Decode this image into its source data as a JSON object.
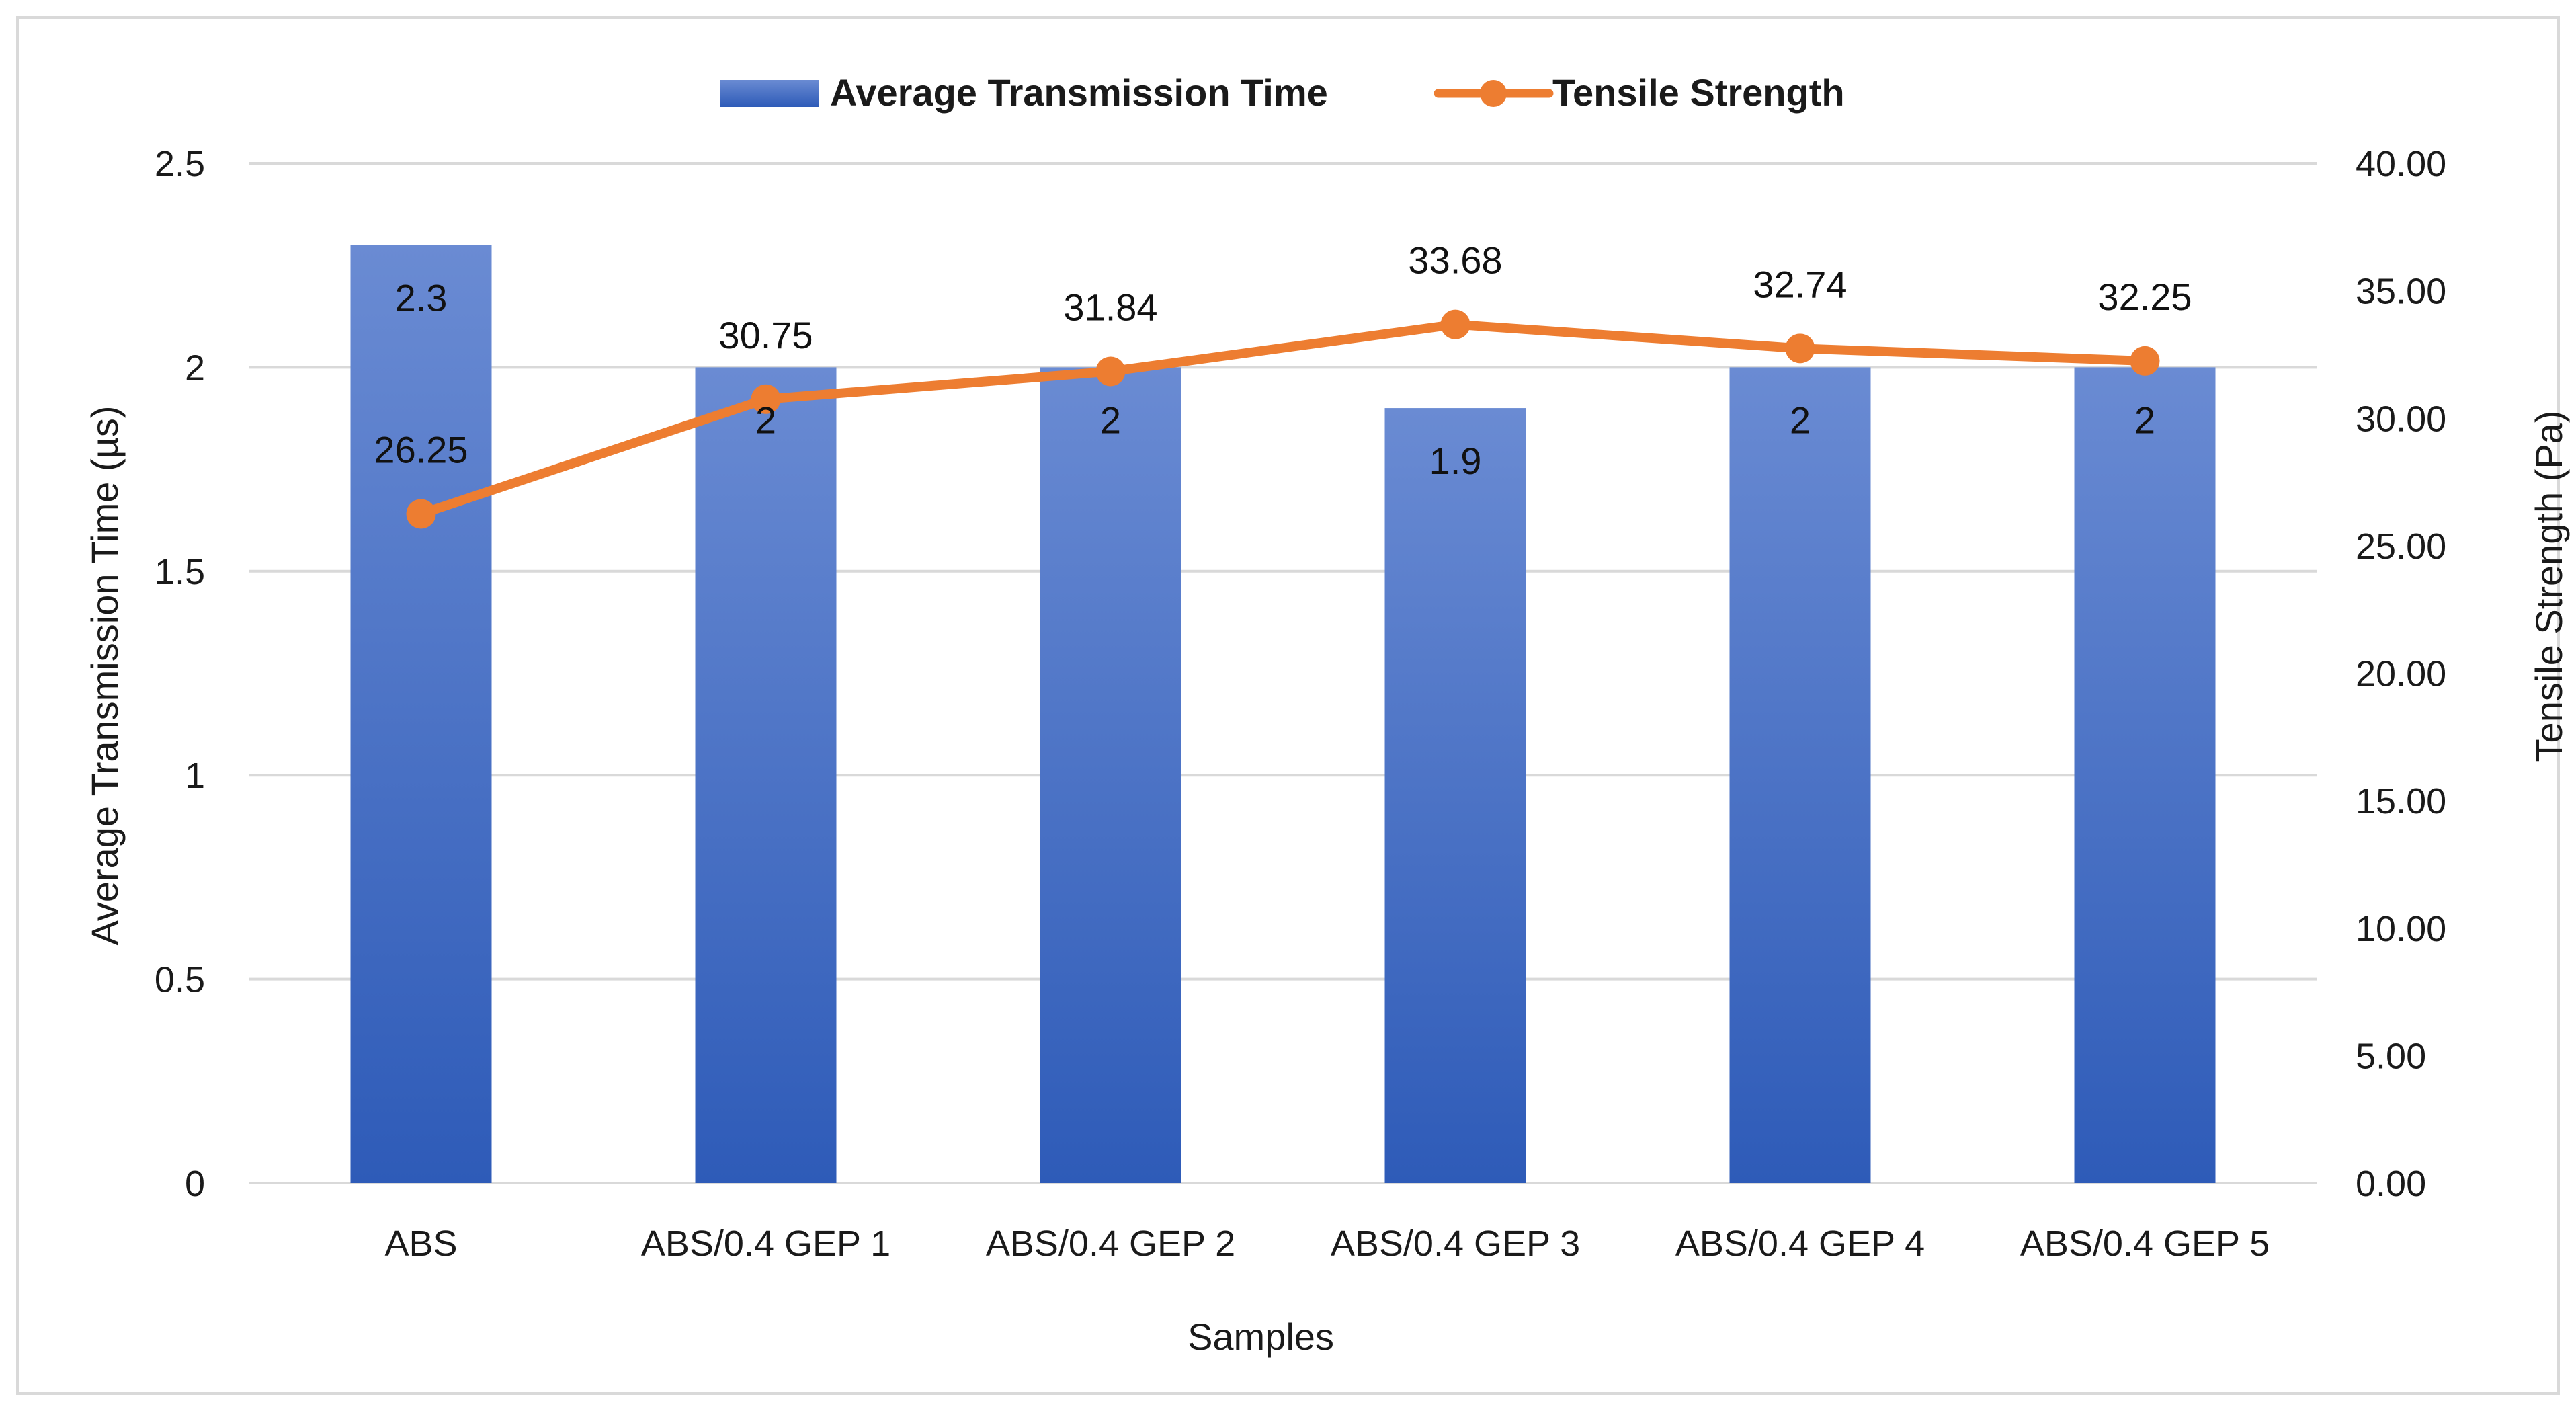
{
  "chart_data": {
    "type": "bar",
    "combo": "bar-line-dual-axis",
    "title": "",
    "categories": [
      "ABS",
      "ABS/0.4 GEP 1",
      "ABS/0.4 GEP 2",
      "ABS/0.4 GEP 3",
      "ABS/0.4 GEP 4",
      "ABS/0.4 GEP 5"
    ],
    "series": [
      {
        "name": "Average Transmission Time",
        "type": "bar",
        "axis": "left",
        "color": "#4472C4",
        "values": [
          2.3,
          2,
          2,
          1.9,
          2,
          2
        ],
        "labels": [
          "2.3",
          "2",
          "2",
          "1.9",
          "2",
          "2"
        ]
      },
      {
        "name": "Tensile Strength",
        "type": "line",
        "axis": "right",
        "color": "#ED7D31",
        "values": [
          26.25,
          30.75,
          31.84,
          33.68,
          32.74,
          32.25
        ],
        "labels": [
          "26.25",
          "30.75",
          "31.84",
          "33.68",
          "32.74",
          "32.25"
        ]
      }
    ],
    "xlabel": "Samples",
    "ylabel": "Average Transmission Time (µs)",
    "y2label": "Tensile Strength (Pa)",
    "ylim": [
      0,
      2.5
    ],
    "y2lim": [
      0,
      40
    ],
    "yticks": [
      "0",
      "0.5",
      "1",
      "1.5",
      "2",
      "2.5"
    ],
    "y2ticks": [
      "0.00",
      "5.00",
      "10.00",
      "15.00",
      "20.00",
      "25.00",
      "30.00",
      "35.00",
      "40.00"
    ],
    "grid": true,
    "legend": "top-center"
  }
}
